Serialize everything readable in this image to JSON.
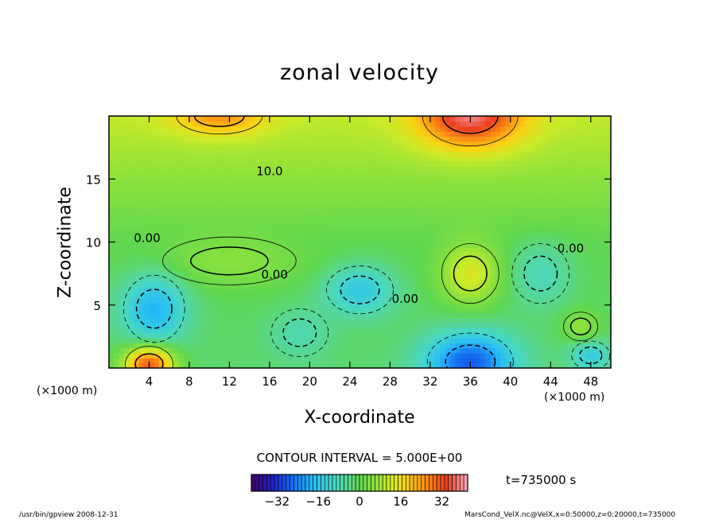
{
  "chart_data": {
    "type": "heatmap",
    "title": "zonal velocity",
    "xlabel": "X-coordinate",
    "ylabel": "Z-coordinate",
    "x_unit_label": "(×1000 m)",
    "z_unit_label": "(×1000 m)",
    "xlim": [
      0,
      50
    ],
    "ylim": [
      0,
      20
    ],
    "x_ticks": [
      4,
      8,
      12,
      16,
      20,
      24,
      28,
      32,
      36,
      40,
      44,
      48
    ],
    "x_tick_labels": [
      "4",
      "8",
      "12",
      "16",
      "20",
      "24",
      "28",
      "32",
      "36",
      "40",
      "44",
      "48"
    ],
    "y_ticks": [
      5,
      10,
      15
    ],
    "y_tick_labels": [
      "5",
      "10",
      "15"
    ],
    "contour_interval_text": "CONTOUR INTERVAL = 5.000E+00",
    "contour_labels": [
      {
        "text": "10.0",
        "x": 16,
        "z": 15.6
      },
      {
        "text": "0.00",
        "x": 3.8,
        "z": 10.3
      },
      {
        "text": "0.00",
        "x": 16.5,
        "z": 7.4
      },
      {
        "text": "0.00",
        "x": 29.5,
        "z": 5.5
      },
      {
        "text": "0.00",
        "x": 46,
        "z": 9.5
      }
    ],
    "colorbar": {
      "min": -42,
      "max": 42,
      "ticks": [
        -32,
        -16,
        0,
        16,
        32
      ],
      "tick_labels": [
        "−32",
        "−16",
        "0",
        "16",
        "32"
      ]
    },
    "field_features": [
      {
        "x": 4.5,
        "z": 4.7,
        "value": -18,
        "rx": 3.2,
        "rz": 2.8
      },
      {
        "x": 25,
        "z": 6.2,
        "value": -14,
        "rx": 3.5,
        "rz": 2.0
      },
      {
        "x": 36,
        "z": 0.5,
        "value": -26,
        "rx": 4.5,
        "rz": 2.4
      },
      {
        "x": 48,
        "z": 1.0,
        "value": -12,
        "rx": 2.0,
        "rz": 1.2
      },
      {
        "x": 19,
        "z": 2.8,
        "value": -6,
        "rx": 3.0,
        "rz": 2.0
      },
      {
        "x": 43,
        "z": 7.5,
        "value": -8,
        "rx": 3.0,
        "rz": 2.5
      },
      {
        "x": 4,
        "z": 0.3,
        "value": 34,
        "rx": 2.5,
        "rz": 1.5
      },
      {
        "x": 36,
        "z": 20.0,
        "value": 28,
        "rx": 5.0,
        "rz": 2.5
      },
      {
        "x": 11,
        "z": 20.0,
        "value": 14,
        "rx": 4.5,
        "rz": 1.5
      },
      {
        "x": 36,
        "z": 7.5,
        "value": 14,
        "rx": 3.0,
        "rz": 2.5
      },
      {
        "x": 12,
        "z": 8.5,
        "value": 6,
        "rx": 7.0,
        "rz": 2.0
      },
      {
        "x": 47,
        "z": 3.3,
        "value": 8,
        "rx": 1.8,
        "rz": 1.2
      }
    ],
    "field_background": [
      {
        "z": 0,
        "value": -2
      },
      {
        "z": 10,
        "value": 0
      },
      {
        "z": 15,
        "value": 6
      },
      {
        "z": 20,
        "value": 11
      }
    ],
    "time_label": "t=735000 s",
    "footer_left": "/usr/bin/gpview   2008-12-31",
    "footer_right": "MarsCond_VelX.nc@VelX,x=0:50000,z=0:20000,t=735000",
    "grid": false,
    "legend": "bottom-center"
  }
}
